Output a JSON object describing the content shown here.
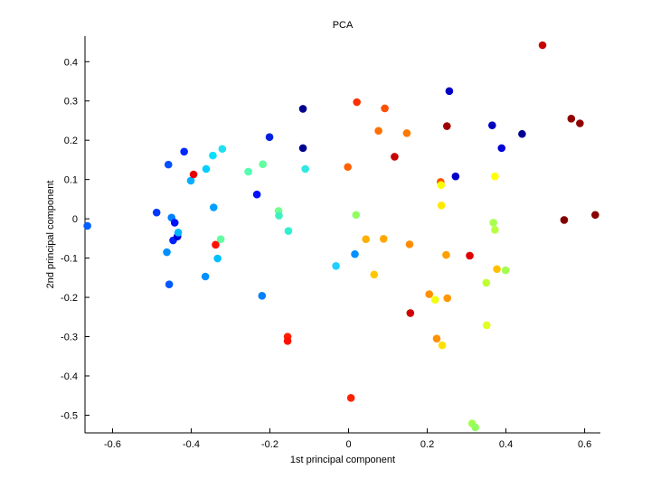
{
  "chart_data": {
    "type": "scatter",
    "title": "PCA",
    "xlabel": "1st principal component",
    "ylabel": "2nd principal component",
    "xlim": [
      -0.67,
      0.64
    ],
    "ylim": [
      -0.545,
      0.465
    ],
    "xticks": [
      -0.6,
      -0.4,
      -0.2,
      0,
      0.2,
      0.4,
      0.6
    ],
    "xtick_labels": [
      "-0.6",
      "-0.4",
      "-0.2",
      "0",
      "0.2",
      "0.4",
      "0.6"
    ],
    "yticks": [
      0.4,
      0.3,
      0.2,
      0.1,
      0,
      -0.1,
      -0.2,
      -0.3,
      -0.4,
      -0.5
    ],
    "ytick_labels": [
      "0.4",
      "0.3",
      "0.2",
      "0.1",
      "0",
      "-0.1",
      "-0.2",
      "-0.3",
      "-0.4",
      "-0.5"
    ],
    "grid": false,
    "legend": "none",
    "colormap": "jet",
    "points": [
      {
        "x": -0.664,
        "y": -0.018,
        "color": "#0060ff"
      },
      {
        "x": -0.488,
        "y": 0.016,
        "color": "#0038ff"
      },
      {
        "x": -0.462,
        "y": -0.085,
        "color": "#0090ff"
      },
      {
        "x": -0.458,
        "y": 0.138,
        "color": "#0050ff"
      },
      {
        "x": -0.456,
        "y": -0.167,
        "color": "#0058ff"
      },
      {
        "x": -0.45,
        "y": 0.003,
        "color": "#0080ff"
      },
      {
        "x": -0.446,
        "y": -0.055,
        "color": "#0020ff"
      },
      {
        "x": -0.442,
        "y": -0.01,
        "color": "#0010ff"
      },
      {
        "x": -0.435,
        "y": -0.045,
        "color": "#0000d8"
      },
      {
        "x": -0.433,
        "y": -0.035,
        "color": "#00b8ff"
      },
      {
        "x": -0.418,
        "y": 0.171,
        "color": "#0028ff"
      },
      {
        "x": -0.401,
        "y": 0.097,
        "color": "#00b0ff"
      },
      {
        "x": -0.394,
        "y": 0.113,
        "color": "#e80000"
      },
      {
        "x": -0.364,
        "y": -0.147,
        "color": "#0090ff"
      },
      {
        "x": -0.362,
        "y": 0.127,
        "color": "#00d0ff"
      },
      {
        "x": -0.345,
        "y": 0.161,
        "color": "#00e0ff"
      },
      {
        "x": -0.343,
        "y": 0.029,
        "color": "#00a0ff"
      },
      {
        "x": -0.338,
        "y": -0.066,
        "color": "#ff1000"
      },
      {
        "x": -0.333,
        "y": -0.101,
        "color": "#00c0ff"
      },
      {
        "x": -0.325,
        "y": -0.052,
        "color": "#60ffa0"
      },
      {
        "x": -0.321,
        "y": 0.178,
        "color": "#20e0f0"
      },
      {
        "x": -0.255,
        "y": 0.12,
        "color": "#50ffb0"
      },
      {
        "x": -0.233,
        "y": 0.062,
        "color": "#0010ff"
      },
      {
        "x": -0.22,
        "y": -0.196,
        "color": "#0080ff"
      },
      {
        "x": -0.218,
        "y": 0.139,
        "color": "#60ffa0"
      },
      {
        "x": -0.201,
        "y": 0.208,
        "color": "#0020e0"
      },
      {
        "x": -0.178,
        "y": 0.02,
        "color": "#70ff90"
      },
      {
        "x": -0.177,
        "y": 0.008,
        "color": "#40f0c0"
      },
      {
        "x": -0.155,
        "y": -0.3,
        "color": "#ff2000"
      },
      {
        "x": -0.155,
        "y": -0.311,
        "color": "#ff1000"
      },
      {
        "x": -0.153,
        "y": -0.031,
        "color": "#30f0d0"
      },
      {
        "x": -0.116,
        "y": 0.28,
        "color": "#00008f"
      },
      {
        "x": -0.116,
        "y": 0.18,
        "color": "#000090"
      },
      {
        "x": -0.11,
        "y": 0.127,
        "color": "#30e8e0"
      },
      {
        "x": -0.032,
        "y": -0.12,
        "color": "#20d0ff"
      },
      {
        "x": -0.002,
        "y": 0.132,
        "color": "#ff6000"
      },
      {
        "x": 0.006,
        "y": -0.456,
        "color": "#ff2000"
      },
      {
        "x": 0.016,
        "y": -0.09,
        "color": "#0090ff"
      },
      {
        "x": 0.019,
        "y": 0.01,
        "color": "#90ff60"
      },
      {
        "x": 0.021,
        "y": 0.297,
        "color": "#ff3000"
      },
      {
        "x": 0.044,
        "y": -0.052,
        "color": "#ffb000"
      },
      {
        "x": 0.065,
        "y": -0.142,
        "color": "#ffc800"
      },
      {
        "x": 0.076,
        "y": 0.224,
        "color": "#ff7000"
      },
      {
        "x": 0.089,
        "y": -0.051,
        "color": "#ffa800"
      },
      {
        "x": 0.092,
        "y": 0.281,
        "color": "#ff5000"
      },
      {
        "x": 0.117,
        "y": 0.158,
        "color": "#c80000"
      },
      {
        "x": 0.148,
        "y": 0.218,
        "color": "#ff7800"
      },
      {
        "x": 0.155,
        "y": -0.065,
        "color": "#ff8c00"
      },
      {
        "x": 0.157,
        "y": -0.24,
        "color": "#d00000"
      },
      {
        "x": 0.205,
        "y": -0.192,
        "color": "#ff9000"
      },
      {
        "x": 0.22,
        "y": -0.206,
        "color": "#f0ff10"
      },
      {
        "x": 0.224,
        "y": -0.305,
        "color": "#ff9000"
      },
      {
        "x": 0.234,
        "y": 0.094,
        "color": "#ff5000"
      },
      {
        "x": 0.235,
        "y": 0.086,
        "color": "#f8ff00"
      },
      {
        "x": 0.236,
        "y": 0.034,
        "color": "#ffe800"
      },
      {
        "x": 0.238,
        "y": -0.322,
        "color": "#ffe000"
      },
      {
        "x": 0.248,
        "y": -0.092,
        "color": "#ffa000"
      },
      {
        "x": 0.25,
        "y": 0.236,
        "color": "#a00000"
      },
      {
        "x": 0.251,
        "y": -0.202,
        "color": "#ff9800"
      },
      {
        "x": 0.256,
        "y": 0.325,
        "color": "#0000c0"
      },
      {
        "x": 0.272,
        "y": 0.108,
        "color": "#0000c8"
      },
      {
        "x": 0.308,
        "y": -0.094,
        "color": "#e00000"
      },
      {
        "x": 0.314,
        "y": -0.521,
        "color": "#a0ff50"
      },
      {
        "x": 0.322,
        "y": -0.531,
        "color": "#90ff60"
      },
      {
        "x": 0.35,
        "y": -0.163,
        "color": "#c0ff30"
      },
      {
        "x": 0.351,
        "y": -0.271,
        "color": "#e0ff20"
      },
      {
        "x": 0.365,
        "y": 0.238,
        "color": "#0000c0"
      },
      {
        "x": 0.368,
        "y": -0.01,
        "color": "#a8ff50"
      },
      {
        "x": 0.372,
        "y": -0.028,
        "color": "#b8ff40"
      },
      {
        "x": 0.372,
        "y": 0.108,
        "color": "#ffff00"
      },
      {
        "x": 0.377,
        "y": -0.128,
        "color": "#ffc000"
      },
      {
        "x": 0.389,
        "y": 0.18,
        "color": "#0000d8"
      },
      {
        "x": 0.399,
        "y": -0.131,
        "color": "#a0ff50"
      },
      {
        "x": 0.441,
        "y": 0.216,
        "color": "#000090"
      },
      {
        "x": 0.493,
        "y": 0.442,
        "color": "#c80000"
      },
      {
        "x": 0.548,
        "y": -0.003,
        "color": "#800000"
      },
      {
        "x": 0.566,
        "y": 0.255,
        "color": "#900000"
      },
      {
        "x": 0.588,
        "y": 0.243,
        "color": "#900000"
      },
      {
        "x": 0.627,
        "y": 0.01,
        "color": "#880000"
      }
    ]
  }
}
